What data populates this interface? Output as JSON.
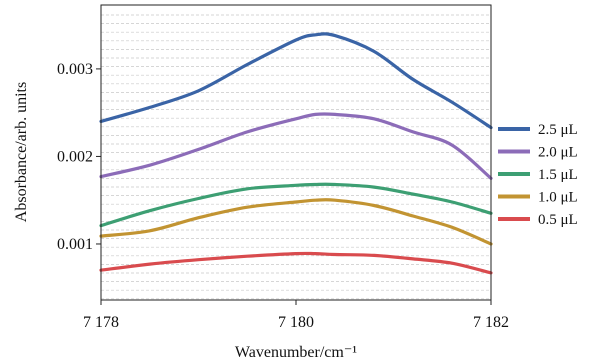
{
  "chart_data": {
    "type": "line",
    "title": "",
    "xlabel": "Wavenumber/cm⁻¹",
    "ylabel": "Absorbance/arb. units",
    "xlim": [
      7178,
      7182
    ],
    "ylim": [
      0.00036,
      0.00373
    ],
    "x_ticks": [
      {
        "value": 7178,
        "label": "7 178"
      },
      {
        "value": 7180,
        "label": "7 180"
      },
      {
        "value": 7182,
        "label": "7 182"
      }
    ],
    "y_ticks": [
      {
        "value": 0.001,
        "label": "0.001"
      },
      {
        "value": 0.002,
        "label": "0.002"
      },
      {
        "value": 0.003,
        "label": "0.003"
      }
    ],
    "grid": "horizontal dashed",
    "legend": "right",
    "x": [
      7178,
      7178.5,
      7179,
      7179.5,
      7180,
      7180.2,
      7180.4,
      7180.8,
      7181.2,
      7181.6,
      7182
    ],
    "series": [
      {
        "name": "2.5 μL",
        "color": "#3a64a6",
        "values": [
          0.0024,
          0.00256,
          0.00275,
          0.00305,
          0.00333,
          0.00339,
          0.00338,
          0.0032,
          0.00288,
          0.00262,
          0.00233
        ]
      },
      {
        "name": "2.0 μL",
        "color": "#8c6cb8",
        "values": [
          0.00177,
          0.0019,
          0.00208,
          0.00228,
          0.00243,
          0.00248,
          0.00248,
          0.00243,
          0.00228,
          0.00213,
          0.00175
        ]
      },
      {
        "name": "1.5 μL",
        "color": "#3d9f73",
        "values": [
          0.00121,
          0.00138,
          0.00152,
          0.00163,
          0.00167,
          0.00168,
          0.00168,
          0.00165,
          0.00157,
          0.00148,
          0.00135
        ]
      },
      {
        "name": "1.0 μL",
        "color": "#c29432",
        "values": [
          0.00109,
          0.00115,
          0.0013,
          0.00142,
          0.00148,
          0.0015,
          0.0015,
          0.00144,
          0.00132,
          0.00119,
          0.001
        ]
      },
      {
        "name": "0.5 μL",
        "color": "#d94b4e",
        "values": [
          0.0007,
          0.00077,
          0.00082,
          0.00086,
          0.00089,
          0.00089,
          0.00088,
          0.00087,
          0.00083,
          0.00078,
          0.00067
        ]
      }
    ]
  }
}
